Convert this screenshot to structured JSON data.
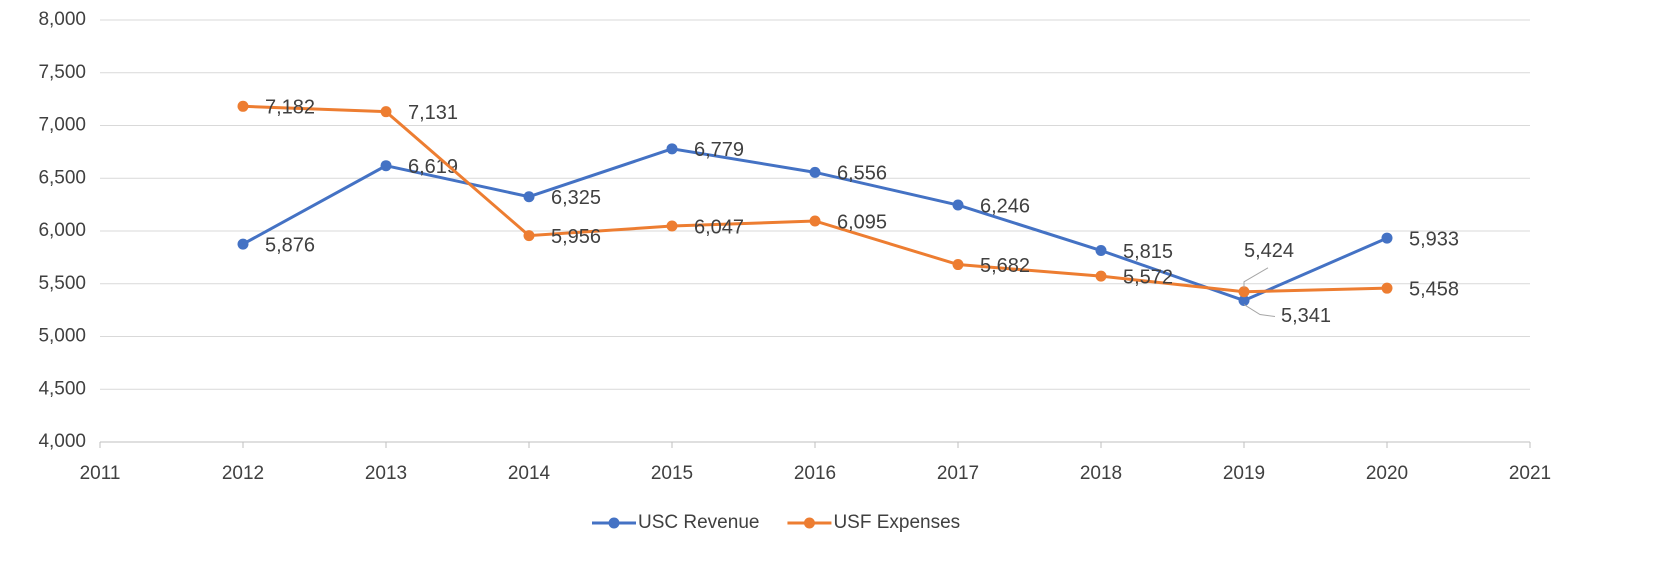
{
  "chart_data": {
    "type": "line",
    "x": [
      2012,
      2013,
      2014,
      2015,
      2016,
      2017,
      2018,
      2019,
      2020
    ],
    "series": [
      {
        "name": "USC Revenue",
        "color": "#4472c4",
        "values": [
          5876,
          6619,
          6325,
          6779,
          6556,
          6246,
          5815,
          5341,
          5933
        ],
        "value_labels": [
          "5,876",
          "6,619",
          "6,325",
          "6,779",
          "6,556",
          "6,246",
          "5,815",
          "5,341",
          "5,933"
        ]
      },
      {
        "name": "USF Expenses",
        "color": "#ed7d31",
        "values": [
          7182,
          7131,
          5956,
          6047,
          6095,
          5682,
          5572,
          5424,
          5458
        ],
        "value_labels": [
          "7,182",
          "7,131",
          "5,956",
          "6,047",
          "6,095",
          "5,682",
          "5,572",
          "5,424",
          "5,458"
        ]
      }
    ],
    "xlim": [
      2011,
      2021
    ],
    "xticks": [
      2011,
      2012,
      2013,
      2014,
      2015,
      2016,
      2017,
      2018,
      2019,
      2020,
      2021
    ],
    "ylim": [
      4000,
      8000
    ],
    "yticks": [
      {
        "value": 4000,
        "label": "4,000"
      },
      {
        "value": 4500,
        "label": "4,500"
      },
      {
        "value": 5000,
        "label": "5,000"
      },
      {
        "value": 5500,
        "label": "5,500"
      },
      {
        "value": 6000,
        "label": "6,000"
      },
      {
        "value": 6500,
        "label": "6,500"
      },
      {
        "value": 7000,
        "label": "7,000"
      },
      {
        "value": 7500,
        "label": "7,500"
      },
      {
        "value": 8000,
        "label": "8,000"
      }
    ],
    "grid": true,
    "legend": "bottom"
  }
}
